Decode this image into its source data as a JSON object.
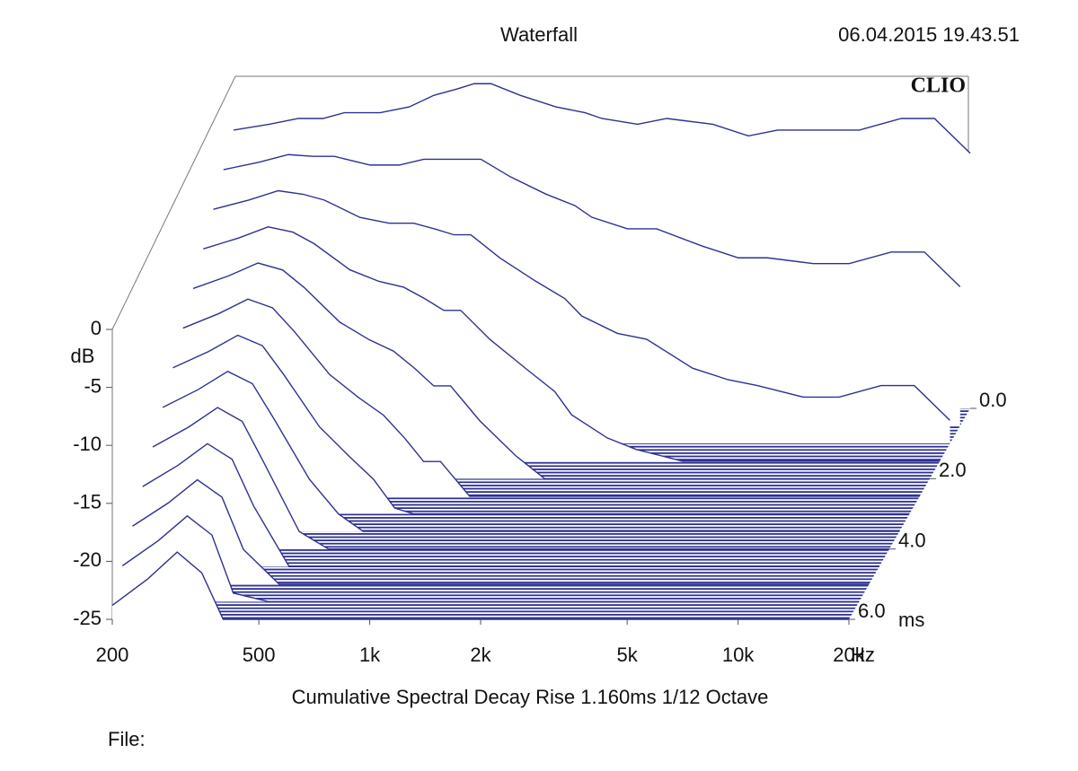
{
  "chart_data": {
    "type": "waterfall",
    "title": "Waterfall",
    "timestamp": "06.04.2015 19.43.51",
    "brand": "CLIO",
    "ylabel": "dB",
    "xlabel": "Hz",
    "zlabel": "ms",
    "footer": "Cumulative Spectral Decay   Rise 1.160ms   1/12 Octave",
    "file_label": "File:",
    "log_x": true,
    "color": "#2e3192",
    "xlim": [
      200,
      20000
    ],
    "xticks": [
      200,
      500,
      {
        "value": 1000,
        "label": "1k"
      },
      {
        "value": 2000,
        "label": "2k"
      },
      {
        "value": 5000,
        "label": "5k"
      },
      {
        "value": 10000,
        "label": "10k"
      },
      {
        "value": 20000,
        "label": "20k"
      }
    ],
    "ylim": [
      -25,
      0
    ],
    "yticks": [
      0,
      -5,
      -10,
      -15,
      -20,
      -25
    ],
    "zlim": [
      0,
      6
    ],
    "zticks": [
      {
        "value": 0,
        "label": "0.0"
      },
      {
        "value": 2,
        "label": "2.0"
      },
      {
        "value": 4,
        "label": "4.0"
      },
      {
        "value": 6,
        "label": "6.0"
      }
    ],
    "x": [
      200,
      250,
      300,
      350,
      400,
      500,
      600,
      700,
      800,
      900,
      1000,
      1200,
      1500,
      1800,
      2000,
      2500,
      3000,
      4000,
      5000,
      6000,
      8000,
      10000,
      13000,
      16000,
      20000
    ],
    "z": [
      0,
      0.5,
      1,
      1.5,
      2,
      2.5,
      3,
      3.5,
      4,
      4.5,
      5,
      5.5,
      6
    ],
    "surface": [
      [
        -1,
        -0.5,
        0,
        0,
        0.5,
        0.5,
        1,
        2,
        2.5,
        3,
        3,
        2,
        1,
        0.5,
        0,
        -0.5,
        0,
        -0.5,
        -1.5,
        -1,
        -1,
        -1,
        0,
        0,
        -3
      ],
      [
        -2.9,
        -2.25,
        -1.6,
        -1.75,
        -1.75,
        -2.5,
        -2.5,
        -2,
        -2,
        -2,
        -2,
        -3.5,
        -5,
        -6,
        -7,
        -8,
        -8,
        -9.5,
        -10.5,
        -10.5,
        -11,
        -11,
        -10,
        -10,
        -13
      ],
      [
        -4.8,
        -4,
        -3.2,
        -3.5,
        -4,
        -5.5,
        -6,
        -6,
        -6.5,
        -7,
        -7,
        -9,
        -11,
        -12.5,
        -14,
        -15.5,
        -16,
        -18.5,
        -19.5,
        -20,
        -21,
        -21,
        -20,
        -20,
        -23
      ],
      [
        -6.7,
        -5.75,
        -4.8,
        -5.25,
        -6.25,
        -8.5,
        -9.5,
        -10,
        -11,
        -12,
        -12,
        -14.5,
        -17,
        -19,
        -21,
        -23,
        -24,
        -25,
        -25,
        -25,
        -25,
        -25,
        -25,
        -25,
        -25
      ],
      [
        -8.6,
        -7.5,
        -6.4,
        -7,
        -8.5,
        -11.5,
        -13,
        -14,
        -15.5,
        -17,
        -17,
        -20,
        -23,
        -25,
        -25,
        -25,
        -25,
        -25,
        -25,
        -25,
        -25,
        -25,
        -25,
        -25,
        -25
      ],
      [
        -10.5,
        -9.25,
        -8,
        -8.75,
        -10.75,
        -14.5,
        -16.5,
        -18,
        -20,
        -22,
        -22,
        -25,
        -25,
        -25,
        -25,
        -25,
        -25,
        -25,
        -25,
        -25,
        -25,
        -25,
        -25,
        -25,
        -25
      ],
      [
        -12.4,
        -11,
        -9.6,
        -10.5,
        -13,
        -17.5,
        -20,
        -22,
        -24.5,
        -25,
        -25,
        -25,
        -25,
        -25,
        -25,
        -25,
        -25,
        -25,
        -25,
        -25,
        -25,
        -25,
        -25,
        -25,
        -25
      ],
      [
        -14.3,
        -12.75,
        -11.2,
        -12.25,
        -15.25,
        -20.5,
        -23.5,
        -25,
        -25,
        -25,
        -25,
        -25,
        -25,
        -25,
        -25,
        -25,
        -25,
        -25,
        -25,
        -25,
        -25,
        -25,
        -25,
        -25,
        -25
      ],
      [
        -16.2,
        -14.5,
        -12.8,
        -14,
        -17.5,
        -23.5,
        -25,
        -25,
        -25,
        -25,
        -25,
        -25,
        -25,
        -25,
        -25,
        -25,
        -25,
        -25,
        -25,
        -25,
        -25,
        -25,
        -25,
        -25,
        -25
      ],
      [
        -18.1,
        -16.25,
        -14.4,
        -15.75,
        -19.75,
        -25,
        -25,
        -25,
        -25,
        -25,
        -25,
        -25,
        -25,
        -25,
        -25,
        -25,
        -25,
        -25,
        -25,
        -25,
        -25,
        -25,
        -25,
        -25,
        -25
      ],
      [
        -20,
        -18,
        -16,
        -17.5,
        -22,
        -25,
        -25,
        -25,
        -25,
        -25,
        -25,
        -25,
        -25,
        -25,
        -25,
        -25,
        -25,
        -25,
        -25,
        -25,
        -25,
        -25,
        -25,
        -25,
        -25
      ],
      [
        -21.9,
        -19.75,
        -17.6,
        -19.25,
        -24.25,
        -25,
        -25,
        -25,
        -25,
        -25,
        -25,
        -25,
        -25,
        -25,
        -25,
        -25,
        -25,
        -25,
        -25,
        -25,
        -25,
        -25,
        -25,
        -25,
        -25
      ],
      [
        -23.8,
        -21.5,
        -19.2,
        -21,
        -25,
        -25,
        -25,
        -25,
        -25,
        -25,
        -25,
        -25,
        -25,
        -25,
        -25,
        -25,
        -25,
        -25,
        -25,
        -25,
        -25,
        -25,
        -25,
        -25,
        -25
      ]
    ]
  }
}
